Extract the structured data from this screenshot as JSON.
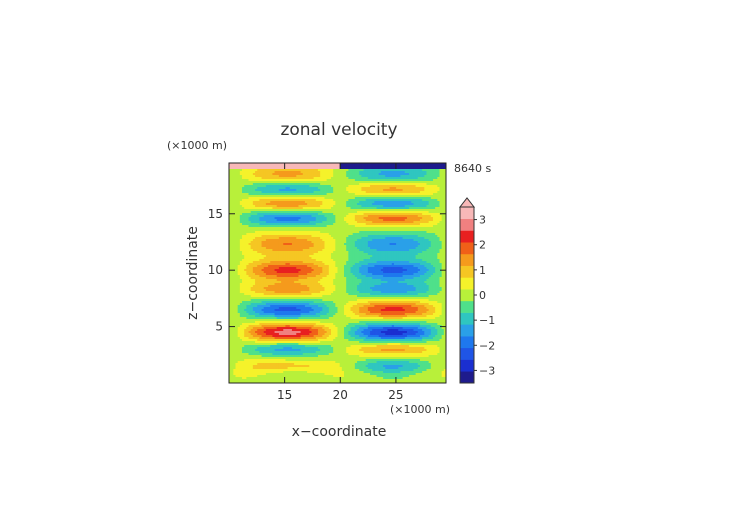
{
  "chart_data": {
    "type": "heatmap",
    "title": "zonal velocity",
    "xlabel": "x−coordinate",
    "ylabel": "z−coordinate",
    "x_unit": "(×1000 m)",
    "y_unit": "(×1000 m)",
    "time_label": "8640 s",
    "xlim": [
      10,
      29.5
    ],
    "ylim": [
      0,
      19.5
    ],
    "x_ticks": [
      15,
      20,
      25
    ],
    "y_ticks": [
      5,
      10,
      15
    ],
    "x_tick_labels": [
      "15",
      "20",
      "25"
    ],
    "y_tick_labels": [
      "5",
      "10",
      "15"
    ],
    "colorbar_ticks": [
      "3",
      "2",
      "1",
      "0",
      "−1",
      "−2",
      "−3"
    ],
    "colorbar_tick_values": [
      3,
      2,
      1,
      0,
      -1,
      -2,
      -3
    ],
    "colorbar_range": [
      -3.5,
      3.5
    ],
    "colorbar_extend": "max",
    "colors": {
      "-3.5": "#1e1b8c",
      "-3": "#1a2fd0",
      "-2.5": "#1f55e6",
      "-2": "#1e78ee",
      "-1.5": "#2aa0e8",
      "-1": "#2fc6c0",
      "-0.5": "#4fe08a",
      "0": "#b8f03a",
      "0.5": "#f5f22a",
      "1": "#f5c623",
      "1.5": "#f59a1c",
      "2": "#f06018",
      "2.5": "#e82020",
      "3": "#f08080",
      "3.5": "#f8b8b8"
    },
    "grid": false,
    "legend": "colorbar right"
  }
}
